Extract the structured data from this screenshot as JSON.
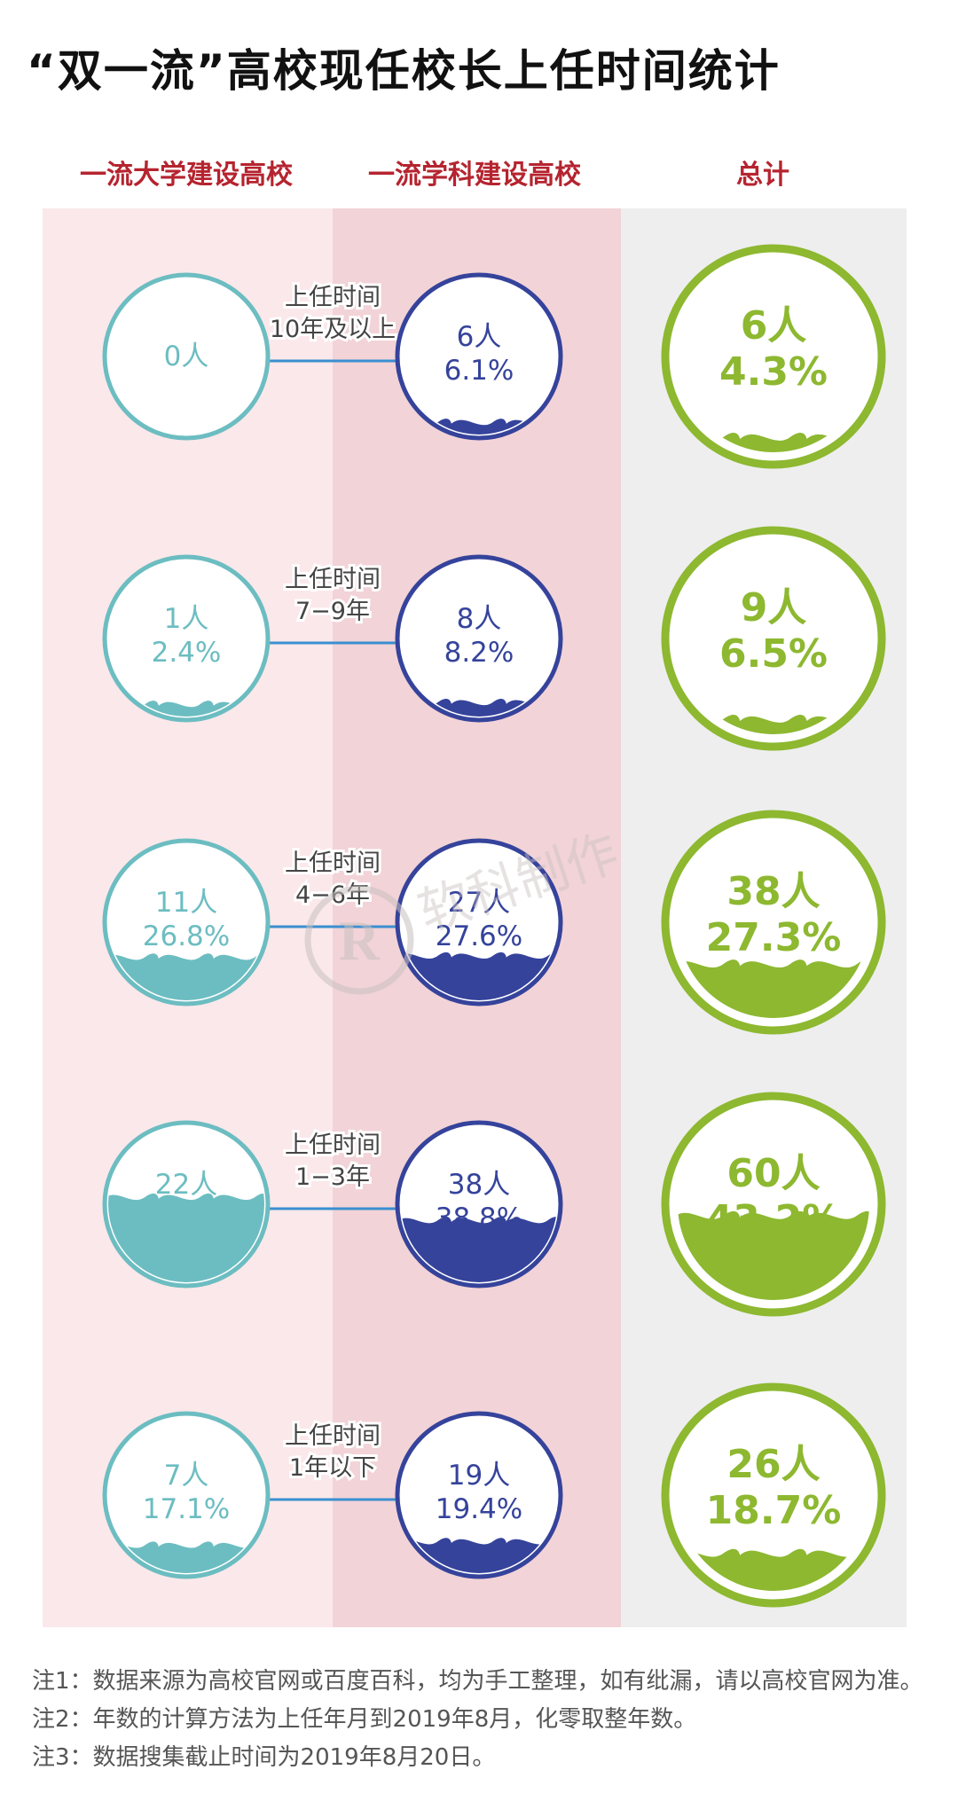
{
  "title": "“双一流”高校现任校长上任时间统计",
  "columns": [
    "一流大学建设高校",
    "一流学科建设高校",
    "总计"
  ],
  "colors": {
    "col1": "#6cbdc1",
    "col2": "#35439b",
    "col3": "#8db830",
    "connector": "#3a8fd0",
    "header": "#b5242f"
  },
  "watermark": "软科制作",
  "chart_data": {
    "type": "table",
    "categories": [
      "10年及以上",
      "7-9年",
      "4-6年",
      "1-3年",
      "1年以下"
    ],
    "row_labels": [
      [
        "上任时间",
        "10年及以上"
      ],
      [
        "上任时间",
        "7−9年"
      ],
      [
        "上任时间",
        "4−6年"
      ],
      [
        "上任时间",
        "1−3年"
      ],
      [
        "上任时间",
        "1年以下"
      ]
    ],
    "series": [
      {
        "name": "一流大学建设高校",
        "counts": [
          "0人",
          "1人",
          "11人",
          "22人",
          "7人"
        ],
        "percents": [
          "",
          "2.4%",
          "26.8%",
          "53.7%",
          "17.1%"
        ],
        "values": [
          0,
          2.4,
          26.8,
          53.7,
          17.1
        ]
      },
      {
        "name": "一流学科建设高校",
        "counts": [
          "6人",
          "8人",
          "27人",
          "38人",
          "19人"
        ],
        "percents": [
          "6.1%",
          "8.2%",
          "27.6%",
          "38.8%",
          "19.4%"
        ],
        "values": [
          6.1,
          8.2,
          27.6,
          38.8,
          19.4
        ]
      },
      {
        "name": "总计",
        "counts": [
          "6人",
          "9人",
          "38人",
          "60人",
          "26人"
        ],
        "percents": [
          "4.3%",
          "6.5%",
          "27.3%",
          "43.2%",
          "18.7%"
        ],
        "values": [
          4.3,
          6.5,
          27.3,
          43.2,
          18.7
        ]
      }
    ]
  },
  "notes": [
    "注1：数据来源为高校官网或百度百科，均为手工整理，如有纰漏，请以高校官网为准。",
    "注2：年数的计算方法为上任年月到2019年8月，化零取整年数。",
    "注3：数据搜集截止时间为2019年8月20日。"
  ]
}
